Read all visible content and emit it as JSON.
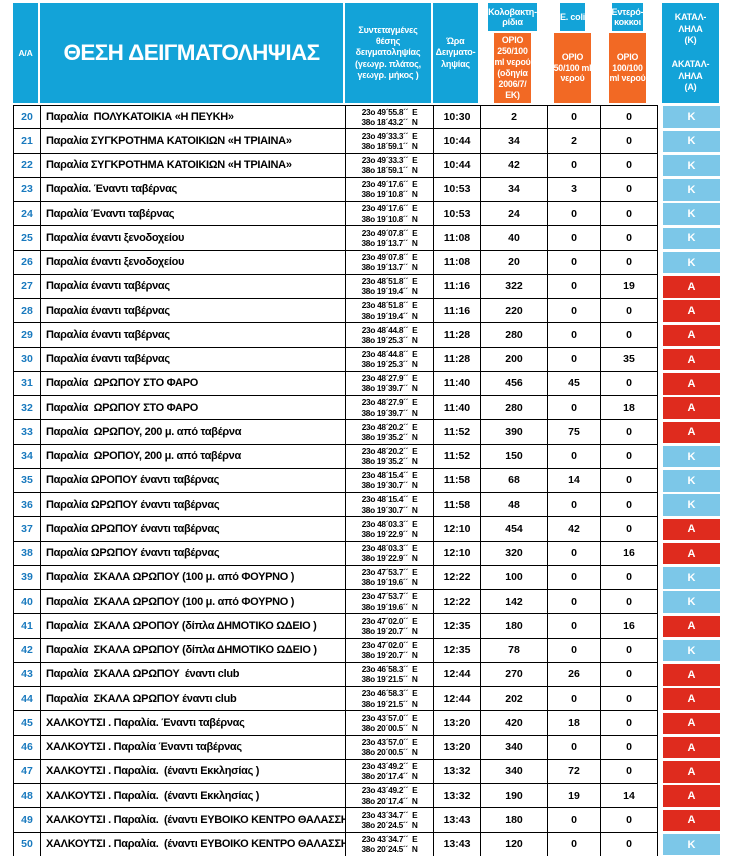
{
  "colors": {
    "header_blue": "#13A3D8",
    "limit_orange": "#F26924",
    "suitable_blue": "#7CC7E8",
    "unsuitable_red": "#DF2B1E",
    "row_number_blue": "#1879BE"
  },
  "header": {
    "aa": "Α/Α",
    "location": "ΘΕΣΗ ΔΕΙΓΜΑΤΟΛΗΨΙΑΣ",
    "coordinates": "Συντεταγμένες\nθέσης\nδειγματοληψίας\n(γεωγρ. πλάτος,\nγεωγρ. μήκος )",
    "time": "Ώρα\nΔειγματο-\nληψίας",
    "coliform_name": "Κολοβακτη-\nρίδια",
    "coliform_limit": "ΟΡΙΟ\n250/100\nml νερού\n(οδηγία\n2006/7/\nΕΚ)",
    "ecoli_name": "E. coli",
    "ecoli_limit": "ΟΡΙΟ\n50/100 ml\nνερού",
    "entero_name": "Εντερό-\nκοκκοι",
    "entero_limit": "ΟΡΙΟ\n100/100\nml νερού",
    "suitability": "ΚΑΤΑΛ-\nΛΗΛΑ\n(Κ)\n\nΑΚΑΤΑΛ-\nΛΗΛΑ\n(Α)"
  },
  "rows": [
    {
      "id": "20",
      "location": "Παραλία  ΠΟΛΥΚΑΤΟΙΚΙΑ «Η ΠΕΥΚΗ»",
      "coord1": "23o 49´55.8´´  E",
      "coord2": "38o 18´43.2´´  N",
      "time": "10:30",
      "coliform": "2",
      "ecoli": "0",
      "entero": "0",
      "status": "Κ",
      "suitable": true
    },
    {
      "id": "21",
      "location": "Παραλία ΣΥΓΚΡΟΤΗΜΑ ΚΑΤΟΙΚΙΩΝ «Η ΤΡΙΑΙΝΑ»",
      "coord1": "23o 49´33.3´´  E",
      "coord2": "38o 18´59.1´´  N",
      "time": "10:44",
      "coliform": "34",
      "ecoli": "2",
      "entero": "0",
      "status": "Κ",
      "suitable": true
    },
    {
      "id": "22",
      "location": "Παραλία ΣΥΓΚΡΟΤΗΜΑ ΚΑΤΟΙΚΙΩΝ «Η ΤΡΙΑΙΝΑ»",
      "coord1": "23o 49´33.3´´  E",
      "coord2": "38o 18´59.1´´  N",
      "time": "10:44",
      "coliform": "42",
      "ecoli": "0",
      "entero": "0",
      "status": "Κ",
      "suitable": true
    },
    {
      "id": "23",
      "location": "Παραλία. Έναντι ταβέρνας",
      "coord1": "23o 49´17.6´´  E",
      "coord2": "38o 19´10.8´´  N",
      "time": "10:53",
      "coliform": "34",
      "ecoli": "3",
      "entero": "0",
      "status": "Κ",
      "suitable": true
    },
    {
      "id": "24",
      "location": "Παραλία Έναντι ταβέρνας",
      "coord1": "23o 49´17.6´´  E",
      "coord2": "38o 19´10.8´´  N",
      "time": "10:53",
      "coliform": "24",
      "ecoli": "0",
      "entero": "0",
      "status": "Κ",
      "suitable": true
    },
    {
      "id": "25",
      "location": "Παραλία έναντι ξενοδοχείου",
      "coord1": "23o 49´07.8´´  E",
      "coord2": "38o 19´13.7´´  N",
      "time": "11:08",
      "coliform": "40",
      "ecoli": "0",
      "entero": "0",
      "status": "Κ",
      "suitable": true
    },
    {
      "id": "26",
      "location": "Παραλία έναντι ξενοδοχείου",
      "coord1": "23o 49´07.8´´  E",
      "coord2": "38o 19´13.7´´  N",
      "time": "11:08",
      "coliform": "20",
      "ecoli": "0",
      "entero": "0",
      "status": "Κ",
      "suitable": true
    },
    {
      "id": "27",
      "location": "Παραλία έναντι ταβέρνας",
      "coord1": "23o 48´51.8´´  E",
      "coord2": "38o 19´19.4´´  N",
      "time": "11:16",
      "coliform": "322",
      "ecoli": "0",
      "entero": "19",
      "status": "Α",
      "suitable": false
    },
    {
      "id": "28",
      "location": "Παραλία έναντι ταβέρνας",
      "coord1": "23o 48´51.8´´  E",
      "coord2": "38o 19´19.4´´  N",
      "time": "11:16",
      "coliform": "220",
      "ecoli": "0",
      "entero": "0",
      "status": "Α",
      "suitable": false
    },
    {
      "id": "29",
      "location": "Παραλία έναντι ταβέρνας",
      "coord1": "23o 48´44.8´´  E",
      "coord2": "38o 19´25.3´´  N",
      "time": "11:28",
      "coliform": "280",
      "ecoli": "0",
      "entero": "0",
      "status": "Α",
      "suitable": false
    },
    {
      "id": "30",
      "location": "Παραλία έναντι ταβέρνας",
      "coord1": "23o 48´44.8´´  E",
      "coord2": "38o 19´25.3´´  N",
      "time": "11:28",
      "coliform": "200",
      "ecoli": "0",
      "entero": "35",
      "status": "Α",
      "suitable": false
    },
    {
      "id": "31",
      "location": "Παραλία  ΩΡΩΠΟΥ ΣΤΟ ΦΑΡΟ",
      "coord1": "23o 48´27.9´´  E",
      "coord2": "38o 19´39.7´´  N",
      "time": "11:40",
      "coliform": "456",
      "ecoli": "45",
      "entero": "0",
      "status": "Α",
      "suitable": false
    },
    {
      "id": "32",
      "location": "Παραλία  ΩΡΩΠΟΥ ΣΤΟ ΦΑΡΟ",
      "coord1": "23o 48´27.9´´  E",
      "coord2": "38o 19´39.7´´  N",
      "time": "11:40",
      "coliform": "280",
      "ecoli": "0",
      "entero": "18",
      "status": "Α",
      "suitable": false
    },
    {
      "id": "33",
      "location": "Παραλία  ΩΡΩΠΟΥ, 200 μ. από ταβέρνα",
      "coord1": "23o 48´20.2´´  E",
      "coord2": "38o 19´35.2´´  N",
      "time": "11:52",
      "coliform": "390",
      "ecoli": "75",
      "entero": "0",
      "status": "Α",
      "suitable": false
    },
    {
      "id": "34",
      "location": "Παραλία  ΩΡΟΠΟΥ, 200 μ. από ταβέρνα",
      "coord1": "23o 48´20.2´´  E",
      "coord2": "38o 19´35.2´´  N",
      "time": "11:52",
      "coliform": "150",
      "ecoli": "0",
      "entero": "0",
      "status": "Κ",
      "suitable": true
    },
    {
      "id": "35",
      "location": "Παραλία ΩΡΟΠΟΥ έναντι ταβέρνας",
      "coord1": "23o 48´15.4´´  E",
      "coord2": "38o 19´30.7´´  N",
      "time": "11:58",
      "coliform": "68",
      "ecoli": "14",
      "entero": "0",
      "status": "Κ",
      "suitable": true
    },
    {
      "id": "36",
      "location": "Παραλία ΩΡΩΠΟΥ έναντι ταβέρνας",
      "coord1": "23o 48´15.4´´  E",
      "coord2": "38o 19´30.7´´  N",
      "time": "11:58",
      "coliform": "48",
      "ecoli": "0",
      "entero": "0",
      "status": "Κ",
      "suitable": true
    },
    {
      "id": "37",
      "location": "Παραλία ΩΡΩΠΟΥ έναντι ταβέρνας",
      "coord1": "23o 48´03.3´´  E",
      "coord2": "38o 19´22.9´´  N",
      "time": "12:10",
      "coliform": "454",
      "ecoli": "42",
      "entero": "0",
      "status": "Α",
      "suitable": false
    },
    {
      "id": "38",
      "location": "Παραλία ΩΡΩΠΟΥ έναντι ταβέρνας",
      "coord1": "23o 48´03.3´´  E",
      "coord2": "38o 19´22.9´´  N",
      "time": "12:10",
      "coliform": "320",
      "ecoli": "0",
      "entero": "16",
      "status": "Α",
      "suitable": false
    },
    {
      "id": "39",
      "location": "Παραλία  ΣΚΑΛΑ ΩΡΩΠΟΥ (100 μ. από ΦΟΥΡΝΟ )",
      "coord1": "23o 47´53.7´´  E",
      "coord2": "38o 19´19.6´´  N",
      "time": "12:22",
      "coliform": "100",
      "ecoli": "0",
      "entero": "0",
      "status": "Κ",
      "suitable": true
    },
    {
      "id": "40",
      "location": "Παραλία  ΣΚΑΛΑ ΩΡΩΠΟΥ (100 μ. από ΦΟΥΡΝΟ )",
      "coord1": "23o 47´53.7´´  E",
      "coord2": "38o 19´19.6´´  N",
      "time": "12:22",
      "coliform": "142",
      "ecoli": "0",
      "entero": "0",
      "status": "Κ",
      "suitable": true
    },
    {
      "id": "41",
      "location": "Παραλία  ΣΚΑΛΑ ΩΡΟΠΟΥ (δίπλα ΔΗΜΟΤΙΚΟ ΩΔΕΙΟ )",
      "coord1": "23o 47´02.0´´  E",
      "coord2": "38o 19´20.7´´  N",
      "time": "12:35",
      "coliform": "180",
      "ecoli": "0",
      "entero": "16",
      "status": "Α",
      "suitable": false
    },
    {
      "id": "42",
      "location": "Παραλία  ΣΚΑΛΑ ΩΡΩΠΟΥ (δίπλα ΔΗΜΟΤΙΚΟ ΩΔΕΙΟ )",
      "coord1": "23o 47´02.0´´  E",
      "coord2": "38o 19´20.7´´  N",
      "time": "12:35",
      "coliform": "78",
      "ecoli": "0",
      "entero": "0",
      "status": "Κ",
      "suitable": true
    },
    {
      "id": "43",
      "location": "Παραλία  ΣΚΑΛΑ ΩΡΩΠΟΥ  έναντι club",
      "coord1": "23o 46´58.3´´  E",
      "coord2": "38o 19´21.5´´  N",
      "time": "12:44",
      "coliform": "270",
      "ecoli": "26",
      "entero": "0",
      "status": "Α",
      "suitable": false
    },
    {
      "id": "44",
      "location": "Παραλία  ΣΚΑΛΑ ΩΡΩΠΟΥ έναντι club",
      "coord1": "23o 46´58.3´´  E",
      "coord2": "38o 19´21.5´´  N",
      "time": "12:44",
      "coliform": "202",
      "ecoli": "0",
      "entero": "0",
      "status": "Α",
      "suitable": false
    },
    {
      "id": "45",
      "location": "ΧΑΛΚΟΥΤΣΙ . Παραλία. Έναντι ταβέρνας",
      "coord1": "23o 43´57.0´´  E",
      "coord2": "38o 20´00.5´´  N",
      "time": "13:20",
      "coliform": "420",
      "ecoli": "18",
      "entero": "0",
      "status": "Α",
      "suitable": false
    },
    {
      "id": "46",
      "location": "ΧΑΛΚΟΥΤΣΙ . Παραλία Έναντι ταβέρνας",
      "coord1": "23o 43´57.0´´  E",
      "coord2": "38o 20´00.5´´  N",
      "time": "13:20",
      "coliform": "340",
      "ecoli": "0",
      "entero": "0",
      "status": "Α",
      "suitable": false
    },
    {
      "id": "47",
      "location": "ΧΑΛΚΟΥΤΣΙ . Παραλία.  (έναντι Εκκλησίας )",
      "coord1": "23o 43´49.2´´  E",
      "coord2": "38o 20´17.4´´  N",
      "time": "13:32",
      "coliform": "340",
      "ecoli": "72",
      "entero": "0",
      "status": "Α",
      "suitable": false
    },
    {
      "id": "48",
      "location": "ΧΑΛΚΟΥΤΣΙ . Παραλία.  (έναντι Εκκλησίας )",
      "coord1": "23o 43´49.2´´  E",
      "coord2": "38o 20´17.4´´  N",
      "time": "13:32",
      "coliform": "190",
      "ecoli": "19",
      "entero": "14",
      "status": "Α",
      "suitable": false
    },
    {
      "id": "49",
      "location": "ΧΑΛΚΟΥΤΣΙ . Παραλία.  (έναντι ΕΥΒΟΙΚΟ ΚΕΝΤΡΟ ΘΑΛΑΣΣΗΣ)",
      "coord1": "23o 43´34.7´´  E",
      "coord2": "38o 20´24.5´´  N",
      "time": "13:43",
      "coliform": "180",
      "ecoli": "0",
      "entero": "0",
      "status": "Α",
      "suitable": false
    },
    {
      "id": "50",
      "location": "ΧΑΛΚΟΥΤΣΙ . Παραλία.  (έναντι ΕΥΒΟΙΚΟ ΚΕΝΤΡΟ ΘΑΛΑΣΣΗΣ)",
      "coord1": "23o 43´34.7´´  E",
      "coord2": "38o 20´24.5´´  N",
      "time": "13:43",
      "coliform": "120",
      "ecoli": "0",
      "entero": "0",
      "status": "Κ",
      "suitable": true
    }
  ]
}
